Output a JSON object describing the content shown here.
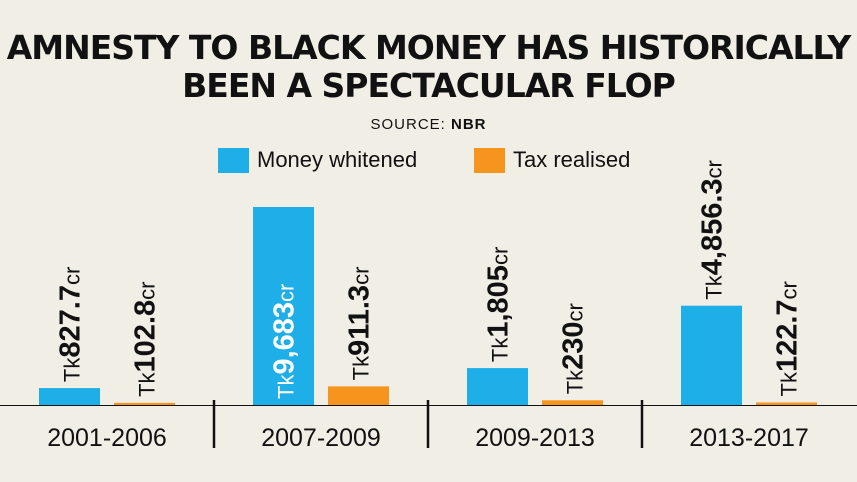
{
  "title_line1": "AMNESTY TO BLACK MONEY HAS HISTORICALLY",
  "title_line2": "BEEN A SPECTACULAR FLOP",
  "source_prefix": "SOURCE:",
  "source_name": "NBR",
  "colors": {
    "money": "#1eaee8",
    "tax": "#f7941d",
    "background": "#f1eee6",
    "text": "#111111"
  },
  "chart_data": {
    "type": "bar",
    "categories": [
      "2001-2006",
      "2007-2009",
      "2009-2013",
      "2013-2017"
    ],
    "series": [
      {
        "name": "Money whitened",
        "color": "#1eaee8",
        "values": [
          827.7,
          9683,
          1805,
          4856.3
        ],
        "labels": [
          {
            "prefix": "Tk",
            "value": "827.7",
            "unit": "cr"
          },
          {
            "prefix": "Tk",
            "value": "9,683",
            "unit": "cr"
          },
          {
            "prefix": "Tk",
            "value": "1,805",
            "unit": "cr"
          },
          {
            "prefix": "Tk",
            "value": "4,856.3",
            "unit": "cr"
          }
        ]
      },
      {
        "name": "Tax realised",
        "color": "#f7941d",
        "values": [
          102.8,
          911.3,
          230,
          122.7
        ],
        "labels": [
          {
            "prefix": "Tk",
            "value": "102.8",
            "unit": "cr"
          },
          {
            "prefix": "Tk",
            "value": "911.3",
            "unit": "cr"
          },
          {
            "prefix": "Tk",
            "value": "230",
            "unit": "cr"
          },
          {
            "prefix": "Tk",
            "value": "122.7",
            "unit": "cr"
          }
        ]
      }
    ],
    "ylim": [
      0,
      9683
    ],
    "grid": false,
    "legend": "top-center"
  }
}
